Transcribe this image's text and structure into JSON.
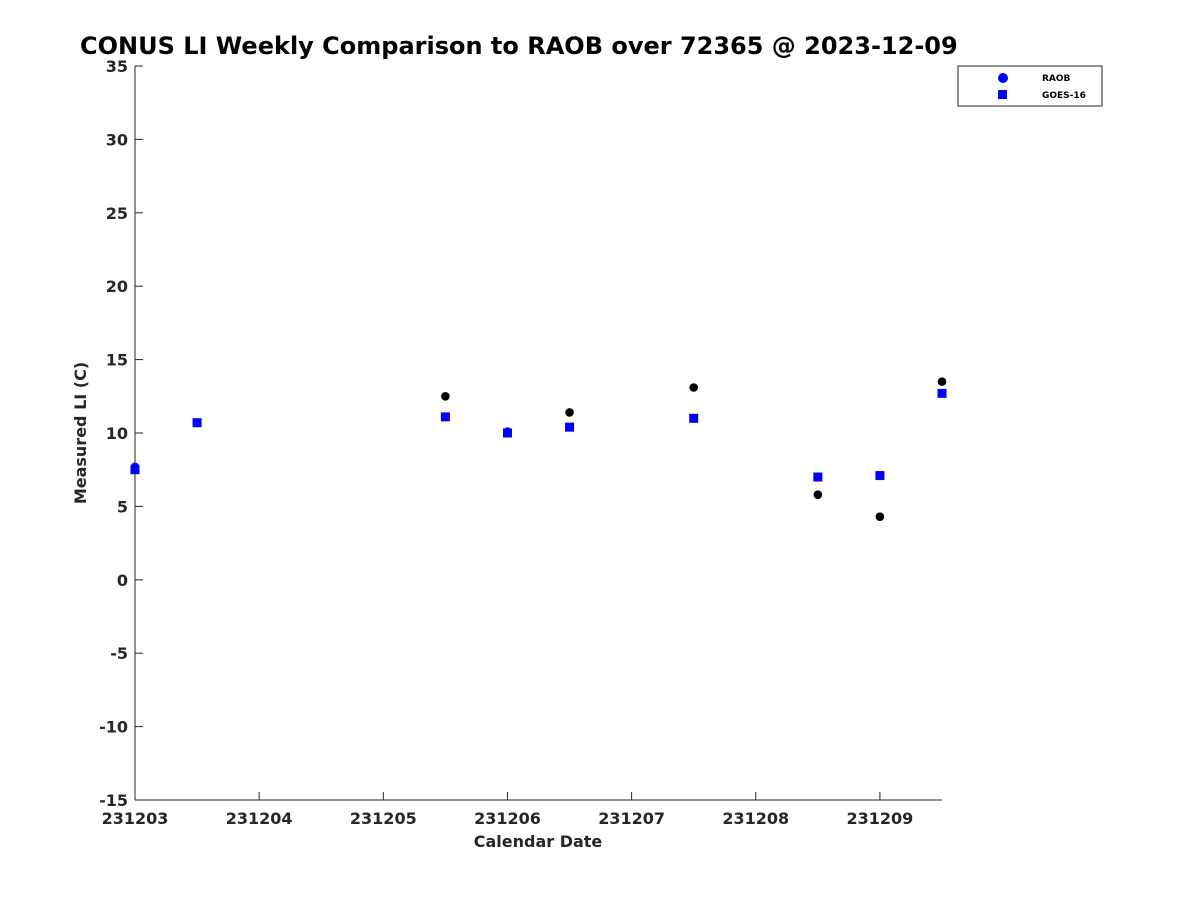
{
  "chart_data": {
    "type": "scatter",
    "title": "CONUS LI Weekly Comparison to RAOB over 72365 @ 2023-12-09",
    "xlabel": "Calendar Date",
    "ylabel": "Measured LI (C)",
    "xlim": [
      "2023-12-03",
      "2023-12-09 12:00"
    ],
    "ylim": [
      -15,
      35
    ],
    "x_ticks": [
      "231203",
      "231204",
      "231205",
      "231206",
      "231207",
      "231208",
      "231209"
    ],
    "y_ticks": [
      "35",
      "30",
      "25",
      "20",
      "15",
      "10",
      "5",
      "0",
      "-5",
      "-10",
      "-15"
    ],
    "grid": false,
    "legend_position": "top-right",
    "series": [
      {
        "name": "RAOB",
        "marker": "circle",
        "x": [
          "2023-12-03 00:00",
          "2023-12-03 12:00",
          "2023-12-05 12:00",
          "2023-12-06 00:00",
          "2023-12-06 12:00",
          "2023-12-07 12:00",
          "2023-12-08 12:00",
          "2023-12-09 00:00",
          "2023-12-09 12:00"
        ],
        "y": [
          7.7,
          10.7,
          12.5,
          10.1,
          11.4,
          13.1,
          5.8,
          4.3,
          13.5
        ]
      },
      {
        "name": "GOES-16",
        "marker": "square",
        "color": "#0000ff",
        "x": [
          "2023-12-03 00:00",
          "2023-12-03 12:00",
          "2023-12-05 12:00",
          "2023-12-06 00:00",
          "2023-12-06 12:00",
          "2023-12-07 12:00",
          "2023-12-08 12:00",
          "2023-12-09 00:00",
          "2023-12-09 12:00"
        ],
        "y": [
          7.5,
          10.7,
          11.1,
          10.0,
          10.4,
          11.0,
          7.0,
          7.1,
          12.7
        ]
      }
    ],
    "colors": {
      "raob_fill": "#000000",
      "goes_fill": "#0000ff",
      "legend_raob_marker": "#0000ff"
    }
  }
}
